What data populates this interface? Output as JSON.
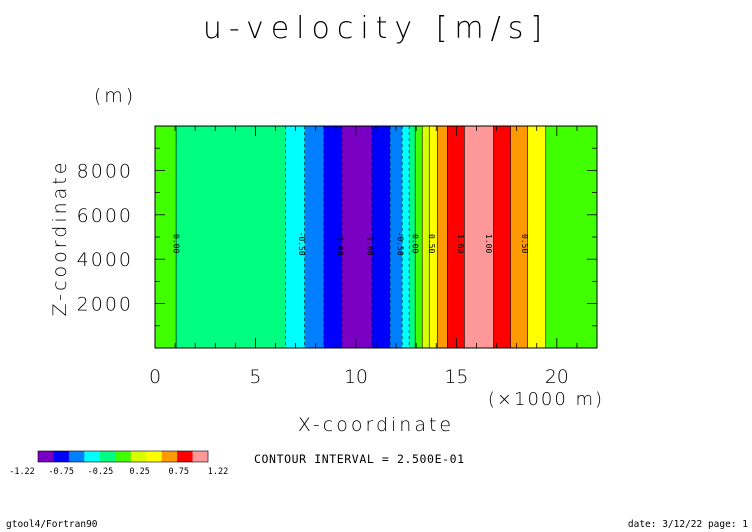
{
  "chart_data": {
    "type": "heatmap",
    "title": "u-velocity [m/s]",
    "xlabel": "X-coordinate",
    "xunit": "(×1000 m)",
    "ylabel": "Z-coordinate",
    "yunit": "(m)",
    "xlim": [
      0,
      22
    ],
    "ylim": [
      0,
      10000
    ],
    "x_ticks": [
      0,
      5,
      10,
      15,
      20
    ],
    "x_tick_labels": [
      "0",
      "5",
      "10",
      "15",
      "20"
    ],
    "y_ticks": [
      2000,
      4000,
      6000,
      8000
    ],
    "y_tick_labels": [
      "2000",
      "4000",
      "6000",
      "8000"
    ],
    "bands": [
      {
        "x0": 0.0,
        "x1": 1.05,
        "level": 5
      },
      {
        "x0": 1.05,
        "x1": 6.5,
        "level": 4
      },
      {
        "x0": 6.5,
        "x1": 7.45,
        "level": 3
      },
      {
        "x0": 7.45,
        "x1": 8.4,
        "level": 2
      },
      {
        "x0": 8.4,
        "x1": 9.3,
        "level": 1
      },
      {
        "x0": 9.3,
        "x1": 10.8,
        "level": 0
      },
      {
        "x0": 10.8,
        "x1": 11.7,
        "level": 1
      },
      {
        "x0": 11.7,
        "x1": 12.3,
        "level": 2
      },
      {
        "x0": 12.3,
        "x1": 12.65,
        "level": 3
      },
      {
        "x0": 12.65,
        "x1": 12.95,
        "level": 4
      },
      {
        "x0": 12.95,
        "x1": 13.3,
        "level": 5
      },
      {
        "x0": 13.3,
        "x1": 13.65,
        "level": 6
      },
      {
        "x0": 13.65,
        "x1": 14.05,
        "level": 7
      },
      {
        "x0": 14.05,
        "x1": 14.55,
        "level": 8
      },
      {
        "x0": 14.55,
        "x1": 15.4,
        "level": 9
      },
      {
        "x0": 15.4,
        "x1": 16.85,
        "level": 10
      },
      {
        "x0": 16.85,
        "x1": 17.7,
        "level": 9
      },
      {
        "x0": 17.7,
        "x1": 18.55,
        "level": 8
      },
      {
        "x0": 18.55,
        "x1": 19.45,
        "level": 7
      },
      {
        "x0": 19.45,
        "x1": 22.0,
        "level": 5
      }
    ],
    "palette": [
      "#7a00c4",
      "#0000ff",
      "#0080ff",
      "#00ffff",
      "#00ff80",
      "#40ff00",
      "#d8ff00",
      "#ffff00",
      "#ff9900",
      "#ff0000",
      "#ff9999"
    ],
    "contour_lines": [
      {
        "x": 1.05,
        "style": "solid"
      },
      {
        "x": 6.5,
        "style": "dashed"
      },
      {
        "x": 7.45,
        "style": "dashed"
      },
      {
        "x": 8.4,
        "style": "dashed"
      },
      {
        "x": 9.3,
        "style": "dashed"
      },
      {
        "x": 10.8,
        "style": "dashed"
      },
      {
        "x": 11.7,
        "style": "dashed"
      },
      {
        "x": 12.3,
        "style": "dashed"
      },
      {
        "x": 12.65,
        "style": "dashed"
      },
      {
        "x": 12.95,
        "style": "solid"
      },
      {
        "x": 13.3,
        "style": "solid"
      },
      {
        "x": 13.65,
        "style": "solid"
      },
      {
        "x": 14.05,
        "style": "solid"
      },
      {
        "x": 14.55,
        "style": "solid"
      },
      {
        "x": 15.4,
        "style": "solid"
      },
      {
        "x": 16.85,
        "style": "solid"
      },
      {
        "x": 17.7,
        "style": "solid"
      },
      {
        "x": 18.55,
        "style": "solid"
      },
      {
        "x": 19.45,
        "style": "solid"
      }
    ],
    "contour_labels": [
      {
        "x": 1.05,
        "y": 4700,
        "text": "0.00"
      },
      {
        "x": 7.3,
        "y": 4700,
        "text": "-0.50"
      },
      {
        "x": 9.2,
        "y": 4700,
        "text": "-1.00"
      },
      {
        "x": 10.7,
        "y": 4700,
        "text": "-1.00"
      },
      {
        "x": 12.2,
        "y": 4700,
        "text": "-0.50"
      },
      {
        "x": 12.95,
        "y": 4700,
        "text": "0.00"
      },
      {
        "x": 13.75,
        "y": 4700,
        "text": "0.50"
      },
      {
        "x": 15.2,
        "y": 4700,
        "text": "1.00"
      },
      {
        "x": 16.6,
        "y": 4700,
        "text": "1.00"
      },
      {
        "x": 18.4,
        "y": 4700,
        "text": "0.50"
      }
    ],
    "colorbar": {
      "tick_labels": [
        "-1.22",
        "-0.75",
        "-0.25",
        "0.25",
        "0.75",
        "1.22"
      ],
      "colors": [
        "#7a00c4",
        "#0000ff",
        "#0080ff",
        "#00ffff",
        "#00ff80",
        "#40ff00",
        "#d8ff00",
        "#ffff00",
        "#ff9900",
        "#ff0000",
        "#ff9999"
      ]
    },
    "contour_interval_text": "CONTOUR INTERVAL = 2.500E-01"
  },
  "footer": {
    "left": "gtool4/Fortran90",
    "right": "date: 3/12/22 page: 1"
  }
}
